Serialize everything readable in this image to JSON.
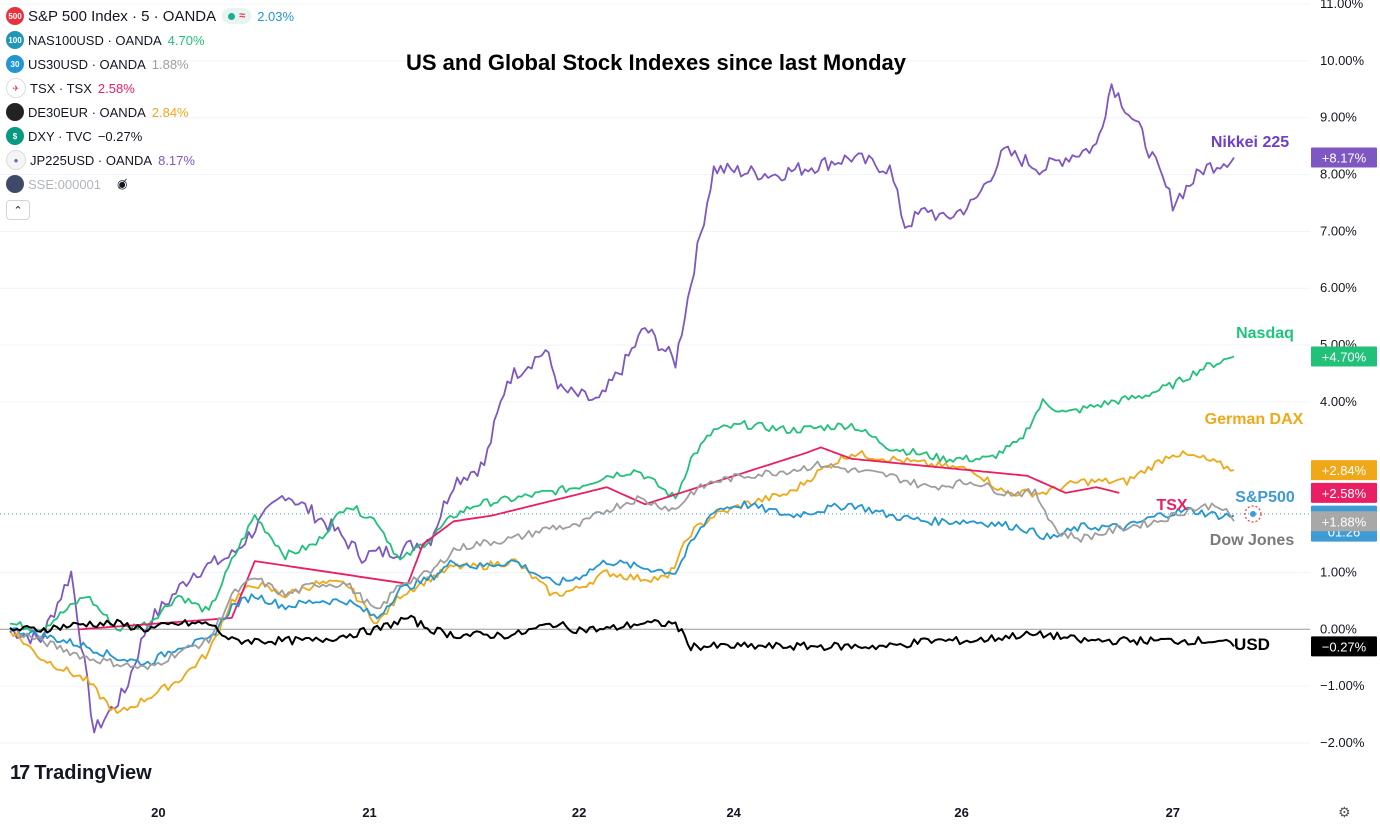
{
  "chart_title": "US and Global Stock Indexes since last Monday",
  "legend": {
    "main": {
      "badge": "500",
      "symbol": "S&P 500 Index · 5 · OANDA",
      "change": "2.03%",
      "color": "#2962ff",
      "icon_color": "#e8333c",
      "pill_approx": "≈"
    },
    "rows": [
      {
        "badge": "100",
        "symbol": "NAS100USD · OANDA",
        "change": "4.70%",
        "color": "#22c17a",
        "icon_color": "#2196b6"
      },
      {
        "badge": "30",
        "symbol": "US30USD · OANDA",
        "change": "1.88%",
        "color": "#9e9e9e",
        "icon_color": "#2196d3"
      },
      {
        "badge": "✈",
        "symbol": "TSX · TSX",
        "change": "2.58%",
        "color": "#e91e63",
        "icon_color": "#ffffff"
      },
      {
        "badge": "",
        "symbol": "DE30EUR · OANDA",
        "change": "2.84%",
        "color": "#f0a818",
        "icon_color": "#222222"
      },
      {
        "badge": "$",
        "symbol": "DXY · TVC",
        "change": "−0.27%",
        "color": "#131722",
        "icon_color": "#089981"
      },
      {
        "badge": "●",
        "symbol": "JP225USD · OANDA",
        "change": "8.17%",
        "color": "#7e57c2",
        "icon_color": "#f5f5f5"
      },
      {
        "badge": "",
        "symbol": "SSE:000001",
        "change": "",
        "color": "#b2b5be",
        "icon_color": "#3f4a6b",
        "hidden": true
      }
    ],
    "collapse_icon": "chevron-up-icon",
    "eye_icon": "eye-off-icon"
  },
  "brand": {
    "name": "TradingView"
  },
  "chart_data": {
    "type": "line",
    "title": "US and Global Stock Indexes since last Monday",
    "x_ticks": [
      "20",
      "21",
      "22",
      "24",
      "26",
      "27"
    ],
    "y_ticks": [
      "11.00%",
      "10.00%",
      "9.00%",
      "8.00%",
      "7.00%",
      "6.00%",
      "5.00%",
      "4.00%",
      "1.00%",
      "0.00%",
      "−1.00%",
      "−2.00%"
    ],
    "ylim": [
      -2,
      11
    ],
    "y_unit": "%",
    "grid": true,
    "zero_line": true,
    "series": [
      {
        "key": "nikkei",
        "name": "Nikkei 225",
        "color": "#7e57c2",
        "end_label": "+8.17%",
        "points": [
          [
            0,
            0
          ],
          [
            0.2,
            -0.2
          ],
          [
            0.4,
            1
          ],
          [
            0.55,
            -1.8
          ],
          [
            0.75,
            -1.1
          ],
          [
            0.9,
            0.1
          ],
          [
            1.2,
            1
          ],
          [
            1.45,
            1.3
          ],
          [
            1.8,
            2.4
          ],
          [
            2.1,
            1.8
          ],
          [
            2.3,
            1.3
          ],
          [
            2.55,
            1.4
          ],
          [
            2.75,
            1.6
          ],
          [
            2.9,
            2.6
          ],
          [
            3.1,
            2.9
          ],
          [
            3.25,
            4.4
          ],
          [
            3.5,
            4.9
          ],
          [
            3.6,
            4.2
          ],
          [
            3.85,
            4.0
          ],
          [
            4.0,
            4.6
          ],
          [
            4.15,
            5.3
          ],
          [
            4.35,
            4.7
          ],
          [
            4.45,
            6.1
          ],
          [
            4.6,
            8.1
          ],
          [
            5.0,
            8.0
          ],
          [
            5.5,
            8.3
          ],
          [
            5.75,
            8.1
          ],
          [
            5.85,
            7.1
          ],
          [
            6.0,
            7.4
          ],
          [
            6.1,
            7.2
          ],
          [
            6.3,
            7.5
          ],
          [
            6.5,
            8.4
          ],
          [
            6.75,
            8.1
          ],
          [
            6.9,
            8.3
          ],
          [
            7.1,
            8.5
          ],
          [
            7.2,
            9.6
          ],
          [
            7.4,
            8.7
          ],
          [
            7.6,
            7.5
          ],
          [
            7.8,
            8.1
          ],
          [
            8.0,
            8.3
          ]
        ]
      },
      {
        "key": "nasdaq",
        "name": "Nasdaq",
        "color": "#22c17a",
        "end_label": "+4.70%",
        "points": [
          [
            0,
            0.1
          ],
          [
            0.2,
            0
          ],
          [
            0.5,
            0.6
          ],
          [
            0.7,
            0
          ],
          [
            0.9,
            0.1
          ],
          [
            1.1,
            0.6
          ],
          [
            1.3,
            0.3
          ],
          [
            1.45,
            1.2
          ],
          [
            1.6,
            2.0
          ],
          [
            1.8,
            1.3
          ],
          [
            2.0,
            1.5
          ],
          [
            2.2,
            2.2
          ],
          [
            2.4,
            1.9
          ],
          [
            2.55,
            1.2
          ],
          [
            2.75,
            1.6
          ],
          [
            2.9,
            2.0
          ],
          [
            3.05,
            2.2
          ],
          [
            3.3,
            2.3
          ],
          [
            3.5,
            2.4
          ],
          [
            3.7,
            2.5
          ],
          [
            3.9,
            2.7
          ],
          [
            4.1,
            2.8
          ],
          [
            4.35,
            2.3
          ],
          [
            4.45,
            3.0
          ],
          [
            4.6,
            3.5
          ],
          [
            4.8,
            3.6
          ],
          [
            5.1,
            3.5
          ],
          [
            5.5,
            3.6
          ],
          [
            5.75,
            3.2
          ],
          [
            6.1,
            3.0
          ],
          [
            6.4,
            3.0
          ],
          [
            6.6,
            3.3
          ],
          [
            6.75,
            4.0
          ],
          [
            6.9,
            3.8
          ],
          [
            7.2,
            4.0
          ],
          [
            7.4,
            4.1
          ],
          [
            7.6,
            4.3
          ],
          [
            7.8,
            4.6
          ],
          [
            8.0,
            4.8
          ]
        ]
      },
      {
        "key": "dax",
        "name": "German DAX",
        "color": "#f0a818",
        "end_label": "+2.84%",
        "points": [
          [
            0,
            0
          ],
          [
            0.2,
            -0.5
          ],
          [
            0.5,
            -0.9
          ],
          [
            0.7,
            -1.5
          ],
          [
            0.9,
            -1.2
          ],
          [
            1.1,
            -0.9
          ],
          [
            1.3,
            -0.4
          ],
          [
            1.45,
            0.5
          ],
          [
            1.6,
            0.8
          ],
          [
            1.8,
            0.6
          ],
          [
            2.0,
            0.8
          ],
          [
            2.2,
            0.8
          ],
          [
            2.4,
            0.1
          ],
          [
            2.55,
            0.6
          ],
          [
            2.75,
            0.9
          ],
          [
            2.9,
            1.1
          ],
          [
            3.05,
            1.1
          ],
          [
            3.3,
            1.2
          ],
          [
            3.55,
            0.6
          ],
          [
            3.7,
            0.7
          ],
          [
            3.9,
            1.0
          ],
          [
            4.1,
            0.9
          ],
          [
            4.3,
            0.9
          ],
          [
            4.45,
            1.7
          ],
          [
            4.6,
            2.0
          ],
          [
            4.8,
            2.2
          ],
          [
            5.1,
            2.4
          ],
          [
            5.3,
            2.8
          ],
          [
            5.5,
            3.1
          ],
          [
            5.75,
            3.0
          ],
          [
            6.0,
            2.9
          ],
          [
            6.3,
            2.8
          ],
          [
            6.5,
            2.4
          ],
          [
            6.75,
            2.4
          ],
          [
            7.0,
            2.6
          ],
          [
            7.3,
            2.6
          ],
          [
            7.6,
            3.1
          ],
          [
            7.8,
            3.0
          ],
          [
            8.0,
            2.8
          ]
        ]
      },
      {
        "key": "tsx",
        "name": "TSX",
        "color": "#e91e63",
        "end_label": "+2.58%",
        "points": [
          [
            0.45,
            0
          ],
          [
            1.45,
            0.2
          ],
          [
            1.6,
            1.2
          ],
          [
            2.6,
            0.8
          ],
          [
            2.7,
            1.5
          ],
          [
            2.9,
            1.9
          ],
          [
            3.15,
            2.0
          ],
          [
            3.9,
            2.5
          ],
          [
            4.15,
            2.2
          ],
          [
            5.2,
            3.1
          ],
          [
            5.3,
            3.2
          ],
          [
            5.5,
            3.0
          ],
          [
            6.65,
            2.7
          ],
          [
            6.9,
            2.4
          ],
          [
            7.1,
            2.5
          ],
          [
            7.25,
            2.4
          ]
        ]
      },
      {
        "key": "sp500",
        "name": "S&P500",
        "color": "#2196d3",
        "end_label": "+2.03%",
        "end_label_time": "01:26",
        "points": [
          [
            0,
            0
          ],
          [
            0.2,
            -0.1
          ],
          [
            0.5,
            -0.3
          ],
          [
            0.7,
            -0.5
          ],
          [
            0.9,
            -0.6
          ],
          [
            1.1,
            -0.3
          ],
          [
            1.3,
            -0.2
          ],
          [
            1.45,
            0.4
          ],
          [
            1.6,
            0.6
          ],
          [
            1.8,
            0.4
          ],
          [
            2.0,
            0.5
          ],
          [
            2.2,
            0.5
          ],
          [
            2.4,
            0.2
          ],
          [
            2.55,
            0.7
          ],
          [
            2.75,
            0.9
          ],
          [
            2.9,
            1.2
          ],
          [
            3.05,
            1.1
          ],
          [
            3.3,
            1.2
          ],
          [
            3.55,
            0.8
          ],
          [
            3.7,
            0.9
          ],
          [
            3.9,
            1.2
          ],
          [
            4.1,
            1.1
          ],
          [
            4.35,
            1.0
          ],
          [
            4.45,
            1.5
          ],
          [
            4.6,
            2.1
          ],
          [
            4.8,
            2.2
          ],
          [
            5.1,
            2.0
          ],
          [
            5.5,
            2.2
          ],
          [
            5.75,
            2.0
          ],
          [
            6.0,
            1.9
          ],
          [
            6.3,
            1.9
          ],
          [
            6.6,
            1.8
          ],
          [
            6.8,
            1.6
          ],
          [
            7.0,
            1.8
          ],
          [
            7.3,
            1.8
          ],
          [
            7.5,
            2.0
          ],
          [
            7.7,
            2.1
          ],
          [
            7.9,
            2.0
          ],
          [
            8.0,
            2.0
          ]
        ]
      },
      {
        "key": "dow",
        "name": "Dow Jones",
        "color": "#9e9e9e",
        "end_label": "+1.88%",
        "points": [
          [
            0,
            0
          ],
          [
            0.2,
            -0.2
          ],
          [
            0.5,
            -0.5
          ],
          [
            0.7,
            -0.6
          ],
          [
            0.9,
            -0.7
          ],
          [
            1.1,
            -0.4
          ],
          [
            1.3,
            -0.2
          ],
          [
            1.45,
            0.6
          ],
          [
            1.6,
            0.9
          ],
          [
            1.8,
            0.6
          ],
          [
            2.0,
            0.8
          ],
          [
            2.2,
            0.8
          ],
          [
            2.4,
            0.3
          ],
          [
            2.55,
            0.8
          ],
          [
            2.75,
            1.0
          ],
          [
            2.9,
            1.4
          ],
          [
            3.05,
            1.5
          ],
          [
            3.3,
            1.6
          ],
          [
            3.55,
            1.8
          ],
          [
            3.7,
            1.8
          ],
          [
            3.9,
            2.1
          ],
          [
            4.1,
            2.3
          ],
          [
            4.35,
            2.1
          ],
          [
            4.45,
            2.4
          ],
          [
            4.6,
            2.6
          ],
          [
            4.8,
            2.7
          ],
          [
            5.1,
            2.8
          ],
          [
            5.3,
            2.9
          ],
          [
            5.5,
            2.8
          ],
          [
            5.75,
            2.7
          ],
          [
            6.0,
            2.5
          ],
          [
            6.3,
            2.6
          ],
          [
            6.5,
            2.4
          ],
          [
            6.7,
            2.4
          ],
          [
            6.85,
            1.7
          ],
          [
            7.0,
            1.6
          ],
          [
            7.3,
            1.8
          ],
          [
            7.5,
            1.9
          ],
          [
            7.7,
            2.1
          ],
          [
            7.9,
            2.2
          ],
          [
            8.0,
            1.9
          ]
        ]
      },
      {
        "key": "usd",
        "name": "USD",
        "color": "#000000",
        "end_label": "−0.27%",
        "points": [
          [
            0,
            0
          ],
          [
            0.2,
            0
          ],
          [
            0.5,
            0.1
          ],
          [
            0.7,
            0.1
          ],
          [
            0.9,
            0
          ],
          [
            1.1,
            0.1
          ],
          [
            1.3,
            0.1
          ],
          [
            1.45,
            -0.2
          ],
          [
            1.6,
            -0.2
          ],
          [
            1.8,
            -0.2
          ],
          [
            2.0,
            -0.2
          ],
          [
            2.2,
            -0.1
          ],
          [
            2.4,
            0
          ],
          [
            2.6,
            0.2
          ],
          [
            2.75,
            0
          ],
          [
            2.9,
            -0.1
          ],
          [
            3.05,
            -0.1
          ],
          [
            3.3,
            -0.1
          ],
          [
            3.55,
            0.1
          ],
          [
            3.7,
            0
          ],
          [
            3.9,
            0
          ],
          [
            4.1,
            0.1
          ],
          [
            4.35,
            0.1
          ],
          [
            4.45,
            -0.3
          ],
          [
            4.6,
            -0.3
          ],
          [
            4.8,
            -0.3
          ],
          [
            5.1,
            -0.3
          ],
          [
            5.5,
            -0.3
          ],
          [
            5.75,
            -0.3
          ],
          [
            6.0,
            -0.2
          ],
          [
            6.3,
            -0.2
          ],
          [
            6.6,
            -0.1
          ],
          [
            6.8,
            -0.1
          ],
          [
            7.0,
            -0.2
          ],
          [
            7.3,
            -0.2
          ],
          [
            7.5,
            -0.2
          ],
          [
            7.7,
            -0.2
          ],
          [
            7.9,
            -0.2
          ],
          [
            8.0,
            -0.3
          ]
        ]
      }
    ],
    "annotations": [
      {
        "text": "Nikkei 225",
        "color": "#6f3fc7"
      },
      {
        "text": "Nasdaq",
        "color": "#1fc47d"
      },
      {
        "text": "German DAX",
        "color": "#f0a818"
      },
      {
        "text": "TSX",
        "color": "#e91e63"
      },
      {
        "text": "S&P500",
        "color": "#3d9bd6"
      },
      {
        "text": "Dow Jones",
        "color": "#7a7a7a"
      },
      {
        "text": "USD",
        "color": "#000000"
      }
    ]
  }
}
